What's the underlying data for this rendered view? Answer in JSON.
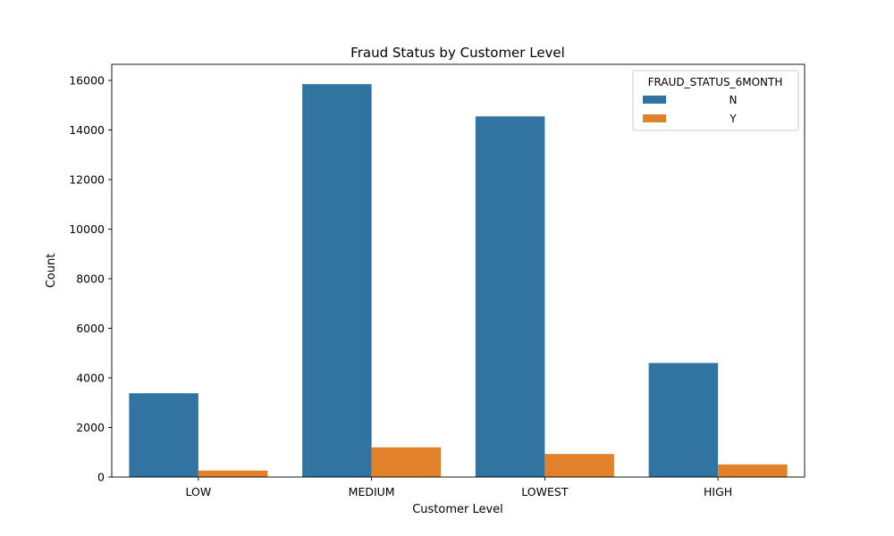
{
  "chart_data": {
    "type": "bar",
    "title": "Fraud Status by Customer Level",
    "xlabel": "Customer Level",
    "ylabel": "Count",
    "categories": [
      "LOW",
      "MEDIUM",
      "LOWEST",
      "HIGH"
    ],
    "series": [
      {
        "name": "N",
        "values": [
          3380,
          15850,
          14550,
          4600
        ],
        "color": "#3274a1"
      },
      {
        "name": "Y",
        "values": [
          260,
          1200,
          930,
          510
        ],
        "color": "#e1812c"
      }
    ],
    "ylim": [
      0,
      16650
    ],
    "yticks": [
      0,
      2000,
      4000,
      6000,
      8000,
      10000,
      12000,
      14000,
      16000
    ],
    "legend": {
      "title": "FRAUD_STATUS_6MONTH",
      "placement": "top-right"
    },
    "grid": false
  }
}
